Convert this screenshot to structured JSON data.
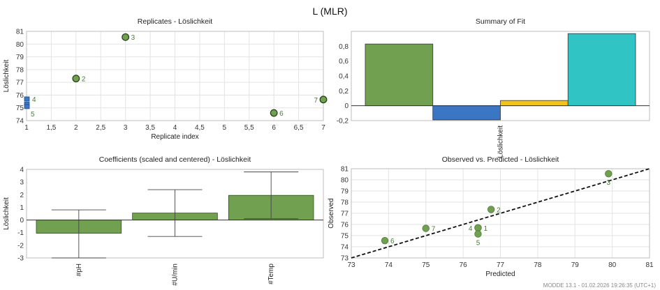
{
  "title": "L (MLR)",
  "footer": "MODDE 13.1 - 01.02.2026 19:26:35 (UTC+1)",
  "colors": {
    "green": "#70a050",
    "blue": "#3a76c4",
    "yellow": "#f2c318",
    "teal": "#30c4c4",
    "dark_green": "#1e3d10"
  },
  "chart_data": [
    {
      "id": "replicates",
      "type": "scatter",
      "title": "Replicates - Löslichkeit",
      "xlabel": "Replicate index",
      "ylabel": "Löslichkeit",
      "xlim": [
        1,
        7
      ],
      "ylim": [
        74,
        81
      ],
      "xticks": [
        "1",
        "1,5",
        "2",
        "2,5",
        "3",
        "3,5",
        "4",
        "4,5",
        "5",
        "5,5",
        "6",
        "6,5",
        "7"
      ],
      "yticks": [
        "74",
        "75",
        "76",
        "77",
        "78",
        "79",
        "80",
        "81"
      ],
      "grid": true,
      "points": [
        {
          "label": "2",
          "x": 2,
          "y": 77.3,
          "marker": "circle",
          "label_side": "right"
        },
        {
          "label": "3",
          "x": 3,
          "y": 80.55,
          "marker": "circle",
          "label_side": "right"
        },
        {
          "label": "6",
          "x": 6,
          "y": 74.6,
          "marker": "circle",
          "label_side": "right"
        },
        {
          "label": "7",
          "x": 7,
          "y": 75.65,
          "marker": "circle",
          "label_side": "left"
        },
        {
          "label": "4",
          "x": 1,
          "y": 75.7,
          "marker": "box",
          "label_side": "right"
        },
        {
          "label": "1",
          "x": 1,
          "y": 75.3,
          "marker": "box",
          "label_side": "none"
        },
        {
          "label": "5",
          "x": 1,
          "y": 75.1,
          "marker": "box",
          "label_side": "below"
        }
      ]
    },
    {
      "id": "summary",
      "type": "bar",
      "title": "Summary of Fit",
      "xlabel": "",
      "ylabel": "",
      "category": "Löslichkeit",
      "ylim": [
        -0.2,
        1.0
      ],
      "yticks": [
        "-0,2",
        "0",
        "0,2",
        "0,4",
        "0,6",
        "0,8"
      ],
      "values": [
        0.83,
        -0.19,
        0.07,
        0.97
      ],
      "bar_colors": [
        "#70a050",
        "#3a76c4",
        "#f2c318",
        "#30c4c4"
      ]
    },
    {
      "id": "coefficients",
      "type": "bar",
      "title": "Coefficients (scaled and centered) - Löslichkeit",
      "xlabel": "",
      "ylabel": "Löslichkeit",
      "ylim": [
        -3,
        4
      ],
      "yticks": [
        "-3",
        "-2",
        "-1",
        "0",
        "1",
        "2",
        "3",
        "4"
      ],
      "categories": [
        "#pH",
        "#U/min",
        "#Temp"
      ],
      "values": [
        -1.05,
        0.55,
        1.95
      ],
      "error_low": [
        -3.0,
        -1.3,
        0.1
      ],
      "error_high": [
        0.8,
        2.4,
        3.8
      ]
    },
    {
      "id": "obs_pred",
      "type": "scatter",
      "title": "Observed vs. Predicted - Löslichkeit",
      "xlabel": "Predicted",
      "ylabel": "Observed",
      "xlim": [
        73,
        81
      ],
      "ylim": [
        73,
        81
      ],
      "xticks": [
        "73",
        "74",
        "75",
        "76",
        "77",
        "78",
        "79",
        "80",
        "81"
      ],
      "yticks": [
        "73",
        "74",
        "75",
        "76",
        "77",
        "78",
        "79",
        "80",
        "81"
      ],
      "grid": true,
      "line": {
        "from": [
          73,
          73
        ],
        "to": [
          81,
          81
        ],
        "style": "dashed"
      },
      "points": [
        {
          "label": "1",
          "x": 76.4,
          "y": 75.7,
          "label_side": "right"
        },
        {
          "label": "2",
          "x": 76.75,
          "y": 77.35,
          "label_side": "right"
        },
        {
          "label": "3",
          "x": 79.9,
          "y": 80.55,
          "label_side": "below"
        },
        {
          "label": "4",
          "x": 76.4,
          "y": 75.7,
          "label_side": "left"
        },
        {
          "label": "5",
          "x": 76.4,
          "y": 75.15,
          "label_side": "below"
        },
        {
          "label": "6",
          "x": 73.9,
          "y": 74.55,
          "label_side": "right"
        },
        {
          "label": "7",
          "x": 75.0,
          "y": 75.65,
          "label_side": "right"
        }
      ]
    }
  ]
}
